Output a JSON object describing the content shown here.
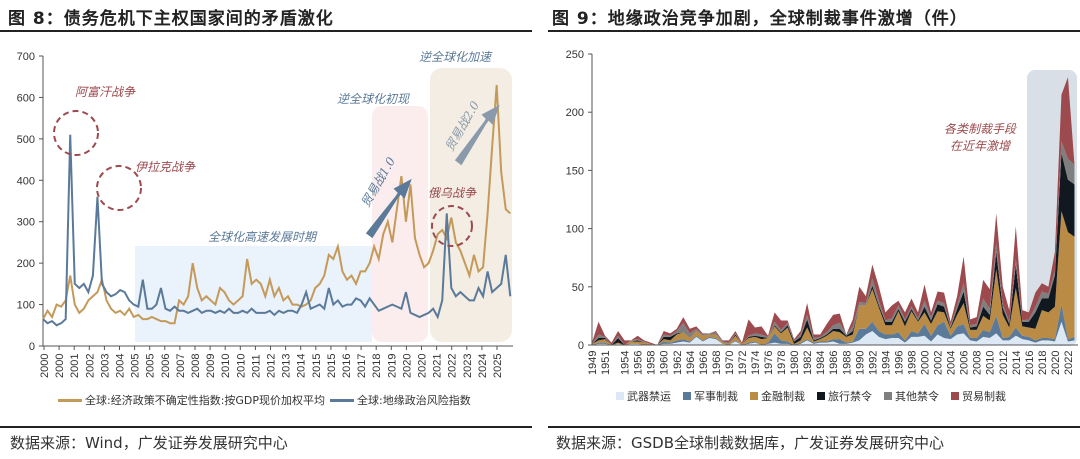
{
  "left": {
    "title": "图 8：债务危机下主权国家间的矛盾激化",
    "source": "数据来源：Wind，广发证券发展研究中心",
    "annotations": {
      "afghan": "阿富汗战争",
      "iraq": "伊拉克战争",
      "glob": "全球化高速发展时期",
      "deglob1": "逆全球化初现",
      "deglob2": "逆全球化加速",
      "tw1": "贸易战1.0",
      "tw2": "贸易战2.0",
      "ru": "俄乌战争"
    },
    "colors": {
      "epu": "#C49A5A",
      "gpr": "#5B7A99"
    }
  },
  "right": {
    "title": "图 9：地缘政治竞争加剧，全球制裁事件激增（件）",
    "source": "数据来源：GSDB全球制裁数据库，广发证券发展研究中心",
    "annotation": [
      "各类制裁手段",
      "在近年激增"
    ]
  },
  "chart_data": [
    {
      "type": "line",
      "title": "债务危机下主权国家间的矛盾激化",
      "ylim": [
        0,
        700
      ],
      "yticks": [
        0,
        100,
        200,
        300,
        400,
        500,
        600,
        700
      ],
      "xticklabels": [
        "2000",
        "2000",
        "2001",
        "2002",
        "2003",
        "2004",
        "2005",
        "2005",
        "2006",
        "2007",
        "2008",
        "2009",
        "2010",
        "2010",
        "2011",
        "2012",
        "2013",
        "2014",
        "2015",
        "2015",
        "2016",
        "2017",
        "2018",
        "2019",
        "2020",
        "2020",
        "2021",
        "2022",
        "2023",
        "2024",
        "2025"
      ],
      "x_start": 2000,
      "step": 0.25,
      "series": [
        {
          "name": "全球:经济政策不确定性指数:按GDP现价加权平均",
          "color": "#C49A5A",
          "values": [
            65,
            85,
            70,
            100,
            95,
            110,
            170,
            100,
            80,
            90,
            110,
            120,
            130,
            160,
            110,
            90,
            80,
            85,
            75,
            90,
            70,
            75,
            65,
            65,
            70,
            65,
            60,
            60,
            55,
            55,
            110,
            100,
            120,
            200,
            140,
            110,
            120,
            110,
            100,
            140,
            130,
            110,
            100,
            110,
            120,
            210,
            150,
            160,
            150,
            120,
            160,
            120,
            140,
            110,
            120,
            100,
            100,
            95,
            100,
            110,
            140,
            150,
            170,
            220,
            210,
            240,
            180,
            160,
            170,
            150,
            180,
            180,
            200,
            240,
            210,
            270,
            300,
            250,
            330,
            410,
            300,
            390,
            260,
            220,
            190,
            200,
            230,
            270,
            280,
            260,
            310,
            250,
            230,
            200,
            170,
            220,
            180,
            190,
            320,
            480,
            630,
            420,
            330,
            320
          ]
        },
        {
          "name": "全球:地缘政治风险指数",
          "color": "#5B7A99",
          "values": [
            65,
            55,
            60,
            50,
            55,
            65,
            510,
            150,
            140,
            150,
            130,
            170,
            360,
            150,
            130,
            120,
            125,
            135,
            130,
            110,
            100,
            95,
            160,
            90,
            90,
            100,
            140,
            90,
            85,
            95,
            85,
            85,
            80,
            85,
            90,
            80,
            85,
            85,
            80,
            85,
            80,
            90,
            80,
            80,
            85,
            80,
            90,
            80,
            80,
            80,
            85,
            75,
            85,
            80,
            85,
            85,
            80,
            100,
            130,
            90,
            95,
            100,
            90,
            140,
            100,
            110,
            95,
            100,
            100,
            115,
            110,
            95,
            115,
            100,
            85,
            90,
            95,
            100,
            95,
            90,
            130,
            80,
            75,
            70,
            75,
            80,
            90,
            70,
            110,
            320,
            140,
            120,
            130,
            120,
            110,
            110,
            140,
            120,
            180,
            130,
            140,
            150,
            220,
            120
          ]
        }
      ]
    },
    {
      "type": "area",
      "stacked": true,
      "ylim": [
        0,
        250
      ],
      "yticks": [
        0,
        50,
        100,
        150,
        200,
        250
      ],
      "x_start": 1949,
      "xticklabels": [
        "1949",
        "1951",
        "1954",
        "1956",
        "1958",
        "1960",
        "1962",
        "1964",
        "1966",
        "1968",
        "1970",
        "1972",
        "1974",
        "1976",
        "1978",
        "1980",
        "1982",
        "1984",
        "1986",
        "1988",
        "1990",
        "1992",
        "1994",
        "1996",
        "1998",
        "2000",
        "2002",
        "2004",
        "2006",
        "2008",
        "2010",
        "2012",
        "2014",
        "2016",
        "2018",
        "2020",
        "2022"
      ],
      "series": [
        {
          "name": "武器禁运",
          "color": "#DCE8F4",
          "values": [
            0,
            1,
            1,
            0,
            1,
            0,
            1,
            1,
            0,
            0,
            0,
            1,
            1,
            2,
            3,
            2,
            7,
            3,
            6,
            5,
            1,
            0,
            3,
            0,
            1,
            2,
            0,
            1,
            2,
            1,
            1,
            0,
            1,
            4,
            1,
            2,
            2,
            3,
            1,
            1,
            2,
            4,
            9,
            12,
            7,
            5,
            6,
            6,
            2,
            7,
            7,
            8,
            3,
            9,
            6,
            5,
            9,
            10,
            4,
            3,
            7,
            6,
            10,
            4,
            4,
            8,
            5,
            4,
            2,
            4,
            4,
            3,
            20,
            3,
            4
          ]
        },
        {
          "name": "军事制裁",
          "color": "#5B7A99",
          "values": [
            0,
            1,
            1,
            0,
            0,
            0,
            0,
            0,
            0,
            0,
            0,
            2,
            1,
            2,
            2,
            1,
            1,
            1,
            1,
            1,
            0,
            0,
            1,
            0,
            1,
            1,
            0,
            1,
            8,
            3,
            2,
            0,
            1,
            1,
            1,
            1,
            1,
            2,
            4,
            1,
            1,
            10,
            5,
            8,
            5,
            4,
            3,
            5,
            2,
            5,
            3,
            10,
            5,
            8,
            14,
            3,
            7,
            8,
            2,
            3,
            6,
            5,
            15,
            2,
            3,
            7,
            3,
            3,
            2,
            2,
            2,
            2,
            15,
            2,
            3
          ]
        },
        {
          "name": "金融制裁",
          "color": "#B98B45",
          "values": [
            1,
            2,
            3,
            0,
            1,
            0,
            2,
            2,
            2,
            1,
            0,
            2,
            2,
            5,
            6,
            3,
            4,
            4,
            2,
            3,
            1,
            1,
            4,
            1,
            4,
            4,
            5,
            4,
            6,
            6,
            12,
            1,
            2,
            10,
            1,
            2,
            5,
            7,
            6,
            5,
            6,
            20,
            20,
            28,
            20,
            8,
            8,
            18,
            12,
            17,
            10,
            10,
            10,
            12,
            8,
            6,
            10,
            18,
            7,
            7,
            12,
            10,
            40,
            20,
            8,
            34,
            8,
            8,
            10,
            24,
            22,
            28,
            80,
            92,
            86
          ]
        },
        {
          "name": "旅行禁令",
          "color": "#111820",
          "values": [
            0,
            2,
            1,
            0,
            4,
            0,
            0,
            1,
            0,
            0,
            0,
            2,
            3,
            1,
            0,
            0,
            0,
            0,
            0,
            0,
            0,
            0,
            1,
            0,
            1,
            1,
            2,
            0,
            1,
            1,
            2,
            2,
            3,
            7,
            1,
            1,
            1,
            2,
            3,
            1,
            3,
            0,
            0,
            3,
            2,
            3,
            3,
            2,
            4,
            2,
            1,
            5,
            3,
            6,
            5,
            1,
            5,
            10,
            2,
            3,
            8,
            5,
            15,
            6,
            3,
            20,
            4,
            5,
            14,
            10,
            12,
            27,
            50,
            45,
            45
          ]
        },
        {
          "name": "其他禁令",
          "color": "#7F7F7F",
          "values": [
            0,
            3,
            1,
            0,
            2,
            0,
            1,
            1,
            1,
            0,
            0,
            2,
            1,
            2,
            8,
            4,
            2,
            1,
            1,
            2,
            1,
            1,
            1,
            0,
            1,
            2,
            2,
            1,
            3,
            2,
            2,
            1,
            2,
            4,
            2,
            1,
            2,
            3,
            5,
            1,
            4,
            3,
            2,
            6,
            4,
            1,
            3,
            3,
            2,
            2,
            2,
            5,
            3,
            3,
            3,
            2,
            3,
            7,
            2,
            2,
            7,
            5,
            8,
            3,
            2,
            5,
            1,
            2,
            5,
            6,
            4,
            4,
            10,
            18,
            17
          ]
        },
        {
          "name": "贸易制裁",
          "color": "#9C4A4E",
          "values": [
            1,
            11,
            1,
            2,
            4,
            4,
            0,
            3,
            1,
            1,
            0,
            3,
            2,
            2,
            5,
            4,
            2,
            1,
            0,
            1,
            1,
            2,
            2,
            1,
            14,
            5,
            7,
            1,
            8,
            8,
            2,
            1,
            3,
            10,
            3,
            2,
            7,
            9,
            8,
            0,
            6,
            13,
            6,
            12,
            12,
            7,
            11,
            4,
            6,
            7,
            5,
            14,
            4,
            8,
            9,
            3,
            8,
            23,
            5,
            6,
            16,
            17,
            25,
            15,
            10,
            28,
            9,
            6,
            12,
            7,
            6,
            16,
            40,
            70,
            0
          ]
        }
      ]
    }
  ]
}
